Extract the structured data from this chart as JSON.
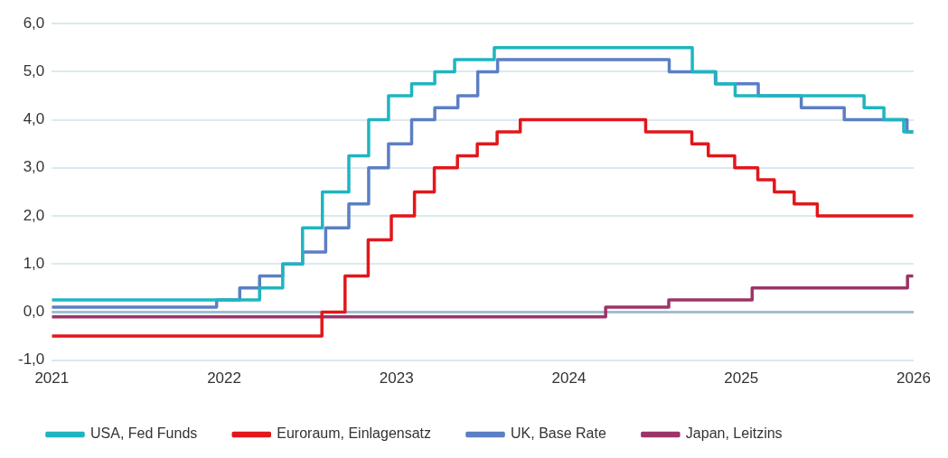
{
  "chart_data": {
    "type": "step",
    "xlim": [
      "2021",
      "2026"
    ],
    "xticks": [
      "2021",
      "2022",
      "2023",
      "2024",
      "2025",
      "2026"
    ],
    "ylim": [
      -1,
      6
    ],
    "yticks": [
      {
        "value": -1,
        "label": "-1,0"
      },
      {
        "value": 0,
        "label": "0,0"
      },
      {
        "value": 1,
        "label": "1,0"
      },
      {
        "value": 2,
        "label": "2,0"
      },
      {
        "value": 3,
        "label": "3,0"
      },
      {
        "value": 4,
        "label": "4,0"
      },
      {
        "value": 5,
        "label": "5,0"
      },
      {
        "value": 6,
        "label": "6,0"
      }
    ],
    "grid": "y",
    "legend": "bottom",
    "ref_lines": [
      {
        "axis": "y",
        "value": 0,
        "color": "#9fbfd3"
      }
    ],
    "series": [
      {
        "name": "USA, Fed Funds",
        "color": "#1fb5c0",
        "x": [
          "2021-01-01",
          "2022-03-17",
          "2022-05-05",
          "2022-06-16",
          "2022-07-28",
          "2022-09-22",
          "2022-11-03",
          "2022-12-15",
          "2023-02-02",
          "2023-03-23",
          "2023-05-04",
          "2023-07-27",
          "2024-09-19",
          "2024-11-08",
          "2024-12-19",
          "2025-09-18",
          "2025-10-30",
          "2025-12-11",
          "2025-12-31"
        ],
        "values": [
          0.25,
          0.5,
          1.0,
          1.75,
          2.5,
          3.25,
          4.0,
          4.5,
          4.75,
          5.0,
          5.25,
          5.5,
          5.0,
          4.75,
          4.5,
          4.25,
          4.0,
          3.75,
          3.75
        ]
      },
      {
        "name": "Euroraum, Einlagensatz",
        "color": "#e3161b",
        "x": [
          "2021-01-01",
          "2022-07-27",
          "2022-09-14",
          "2022-11-02",
          "2022-12-21",
          "2023-02-08",
          "2023-03-22",
          "2023-05-10",
          "2023-06-21",
          "2023-08-02",
          "2023-09-20",
          "2024-06-12",
          "2024-09-18",
          "2024-10-23",
          "2024-12-18",
          "2025-02-05",
          "2025-03-12",
          "2025-04-23",
          "2025-06-11",
          "2025-12-31"
        ],
        "values": [
          -0.5,
          0.0,
          0.75,
          1.5,
          2.0,
          2.5,
          3.0,
          3.25,
          3.5,
          3.75,
          4.0,
          3.75,
          3.5,
          3.25,
          3.0,
          2.75,
          2.5,
          2.25,
          2.0,
          2.0
        ]
      },
      {
        "name": "UK, Base Rate",
        "color": "#5b7fc4",
        "x": [
          "2021-01-01",
          "2021-12-16",
          "2022-02-03",
          "2022-03-17",
          "2022-05-05",
          "2022-06-16",
          "2022-08-04",
          "2022-09-22",
          "2022-11-03",
          "2022-12-15",
          "2023-02-02",
          "2023-03-23",
          "2023-05-11",
          "2023-06-22",
          "2023-08-03",
          "2024-08-01",
          "2024-11-07",
          "2025-02-06",
          "2025-05-08",
          "2025-08-07",
          "2025-12-18",
          "2025-12-31"
        ],
        "values": [
          0.1,
          0.25,
          0.5,
          0.75,
          1.0,
          1.25,
          1.75,
          2.25,
          3.0,
          3.5,
          4.0,
          4.25,
          4.5,
          5.0,
          5.25,
          5.0,
          4.75,
          4.5,
          4.25,
          4.0,
          3.75,
          3.75
        ]
      },
      {
        "name": "Japan, Leitzins",
        "color": "#9c3468",
        "x": [
          "2021-01-01",
          "2024-03-19",
          "2024-07-31",
          "2025-01-24",
          "2025-12-19",
          "2025-12-31"
        ],
        "values": [
          -0.1,
          0.1,
          0.25,
          0.5,
          0.75,
          0.75
        ]
      }
    ]
  }
}
